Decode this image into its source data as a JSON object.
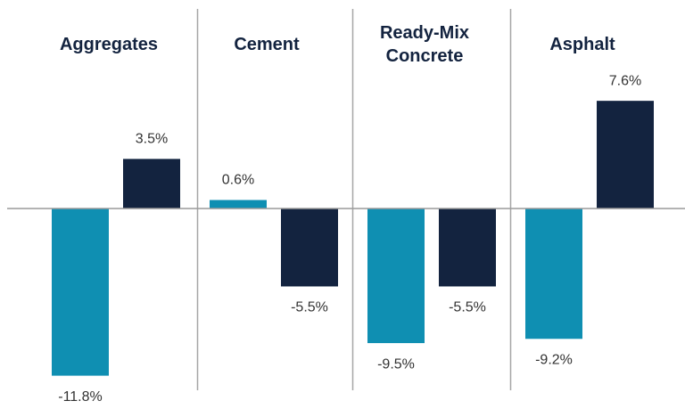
{
  "chart_data": {
    "type": "bar",
    "categories": [
      "Aggregates",
      "Cement",
      "Ready-Mix Concrete",
      "Asphalt"
    ],
    "series": [
      {
        "color": "#0f8fb2",
        "values": [
          -11.8,
          0.6,
          -9.5,
          -9.2
        ],
        "value_labels": [
          "-11.8%",
          "0.6%",
          "-9.5%",
          "-9.2%"
        ]
      },
      {
        "color": "#13233f",
        "values": [
          3.5,
          -5.5,
          -5.5,
          7.6
        ],
        "value_labels": [
          "3.5%",
          "-5.5%",
          "-5.5%",
          "7.6%"
        ]
      }
    ]
  }
}
